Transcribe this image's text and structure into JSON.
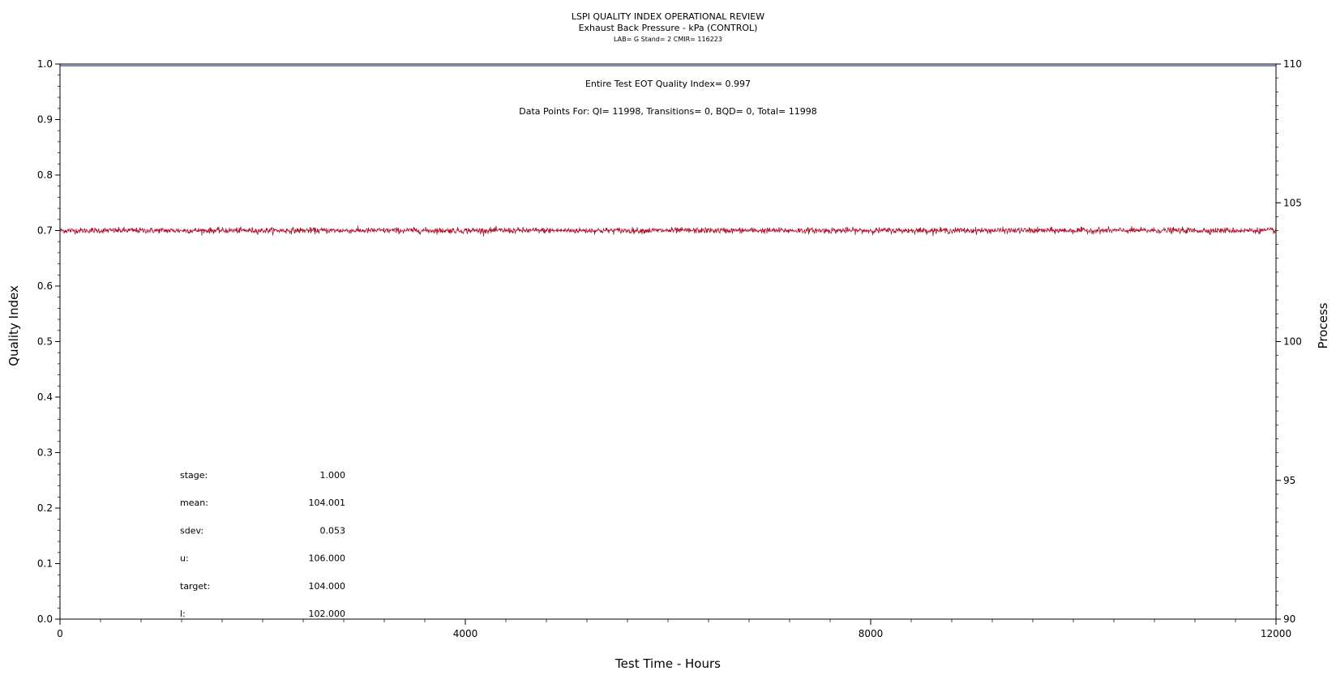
{
  "chart_data": {
    "type": "line",
    "title": "LSPI QUALITY INDEX OPERATIONAL REVIEW",
    "subtitle": "Exhaust Back Pressure - kPa (CONTROL)",
    "subtitle2": "LAB= G Stand= 2 CMIR= 116223",
    "xlabel": "Test Time - Hours",
    "ylabel": "Quality Index",
    "y2label": "Process",
    "xlim": [
      0,
      12000
    ],
    "ylim": [
      0.0,
      1.0
    ],
    "y2lim": [
      90,
      110
    ],
    "xticks": [
      0,
      4000,
      8000,
      12000
    ],
    "xtick_labels": [
      "0",
      "4000",
      "8000",
      "12000"
    ],
    "yticks": [
      0.0,
      0.1,
      0.2,
      0.3,
      0.4,
      0.5,
      0.6,
      0.7,
      0.8,
      0.9,
      1.0
    ],
    "ytick_labels": [
      "0.0",
      "0.1",
      "0.2",
      "0.3",
      "0.4",
      "0.5",
      "0.6",
      "0.7",
      "0.8",
      "0.9",
      "1.0"
    ],
    "y2ticks": [
      90,
      95,
      100,
      105,
      110
    ],
    "y2tick_labels": [
      "90",
      "95",
      "100",
      "105",
      "110"
    ],
    "grid": false,
    "annotations": {
      "quality_index": "Entire Test EOT Quality Index=   0.997",
      "data_points": "Data Points For: QI= 11998, Transitions=     0, BQD=     0, Total= 11998"
    },
    "stats": [
      {
        "label": "stage:",
        "value": "1.000"
      },
      {
        "label": "mean:",
        "value": "104.001"
      },
      {
        "label": "sdev:",
        "value": "0.053"
      },
      {
        "label": "u:",
        "value": "106.000"
      },
      {
        "label": "target:",
        "value": "104.000"
      },
      {
        "label": "l:",
        "value": "102.000"
      }
    ],
    "series": [
      {
        "axis": "y",
        "values_x": [
          0,
          12000
        ],
        "values_y": [
          0.997,
          0.997
        ],
        "color": "#1a2a6c"
      },
      {
        "axis": "y2",
        "x_start": 0,
        "x_end": 12000,
        "mean": 104.001,
        "sdev": 0.053,
        "points": 11998,
        "color": "#b0122a"
      }
    ]
  }
}
